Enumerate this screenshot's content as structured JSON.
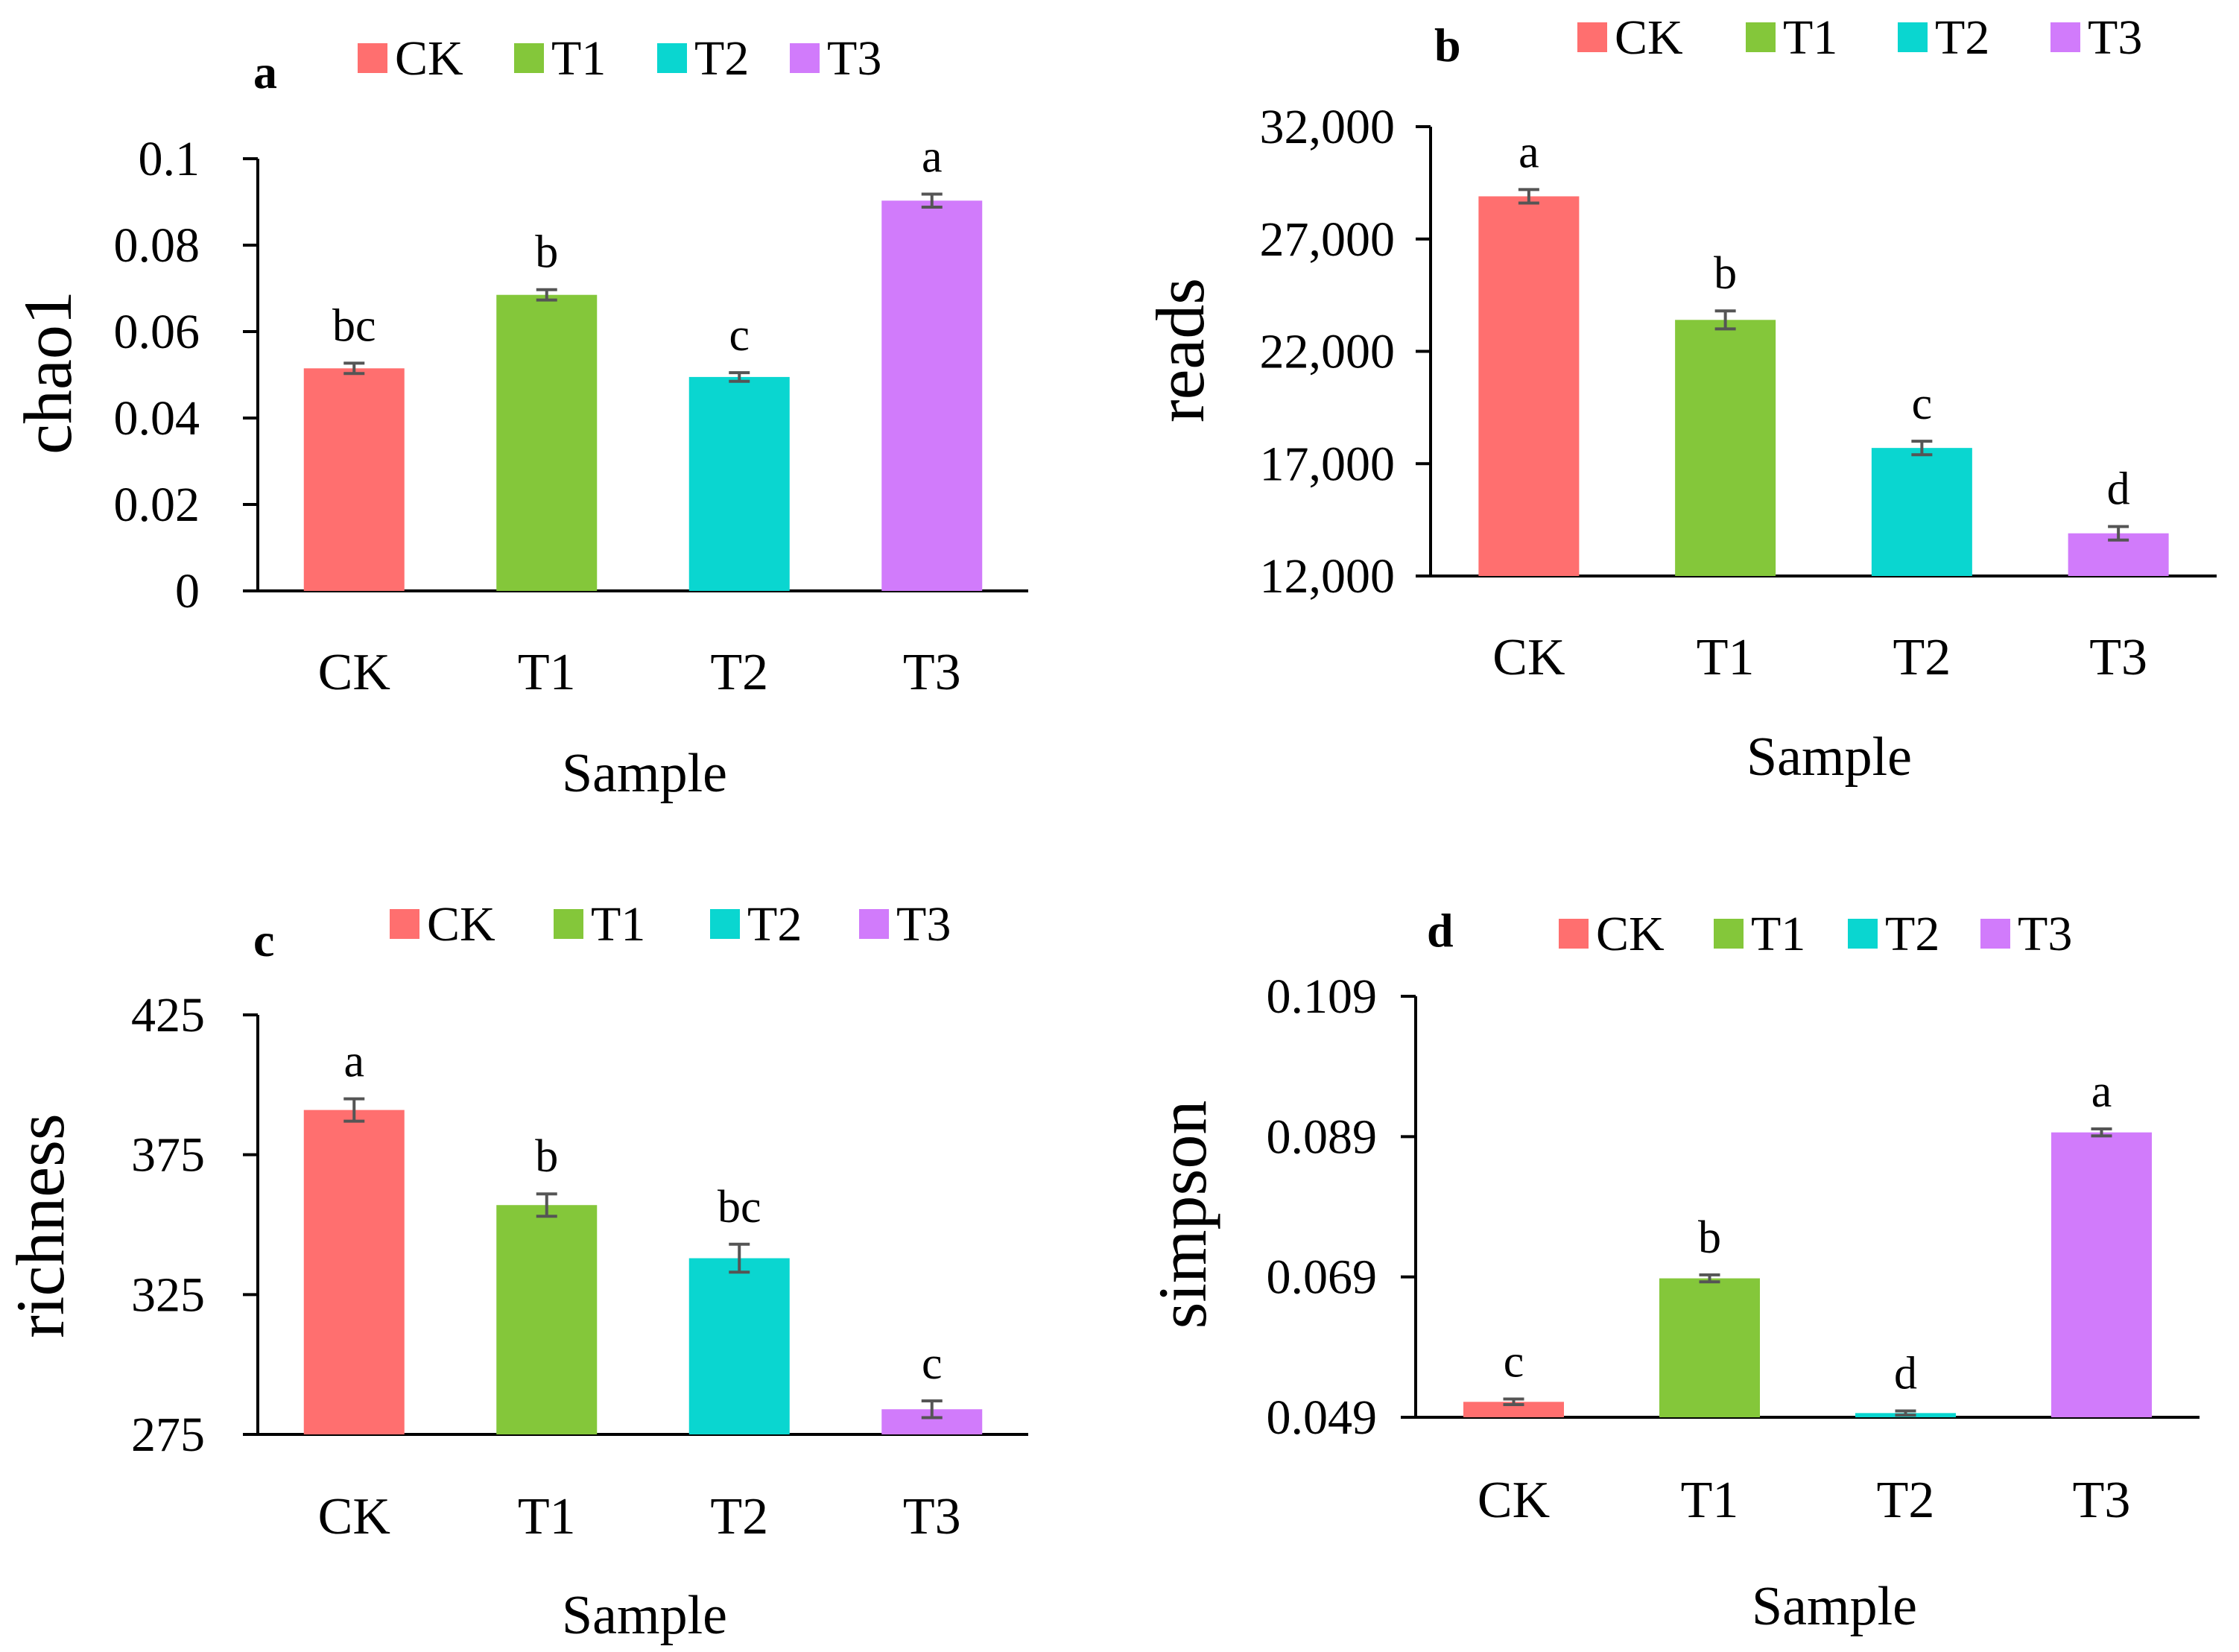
{
  "legend_labels": [
    "CK",
    "T1",
    "T2",
    "T3"
  ],
  "colors": {
    "CK": "#FF6F6F",
    "T1": "#84C73A",
    "T2": "#0AD6D0",
    "T3": "#D17BFB"
  },
  "chart_data": [
    {
      "panel": "a",
      "type": "bar",
      "title": "a",
      "xlabel": "Sample",
      "ylabel": "chao1",
      "categories": [
        "CK",
        "T1",
        "T2",
        "T3"
      ],
      "values": [
        0.0515,
        0.0685,
        0.0495,
        0.0903
      ],
      "errors": [
        0.0012,
        0.0012,
        0.001,
        0.0015
      ],
      "significance": [
        "bc",
        "b",
        "c",
        "a"
      ],
      "ylim": [
        0,
        0.1
      ],
      "yticks": [
        0,
        0.02,
        0.04,
        0.06,
        0.08,
        0.1
      ],
      "ytick_labels": [
        "0",
        "0.02",
        "0.04",
        "0.06",
        "0.08",
        "0.1"
      ],
      "legend": [
        "CK",
        "T1",
        "T2",
        "T3"
      ]
    },
    {
      "panel": "b",
      "type": "bar",
      "title": "b",
      "xlabel": "Sample",
      "ylabel": "reads",
      "categories": [
        "CK",
        "T1",
        "T2",
        "T3"
      ],
      "values": [
        28900,
        23400,
        17700,
        13900
      ],
      "errors": [
        300,
        400,
        300,
        300
      ],
      "significance": [
        "a",
        "b",
        "c",
        "d"
      ],
      "ylim": [
        12000,
        32000
      ],
      "yticks": [
        12000,
        17000,
        22000,
        27000,
        32000
      ],
      "ytick_labels": [
        "12,000",
        "17,000",
        "22,000",
        "27,000",
        "32,000"
      ],
      "legend": [
        "CK",
        "T1",
        "T2",
        "T3"
      ]
    },
    {
      "panel": "c",
      "type": "bar",
      "title": "c",
      "xlabel": "Sample",
      "ylabel": "richness",
      "categories": [
        "CK",
        "T1",
        "T2",
        "T3"
      ],
      "values": [
        391,
        357,
        338,
        284
      ],
      "errors": [
        4,
        4,
        5,
        3
      ],
      "significance": [
        "a",
        "b",
        "bc",
        "c"
      ],
      "ylim": [
        275,
        425
      ],
      "yticks": [
        275,
        325,
        375,
        425
      ],
      "ytick_labels": [
        "275",
        "325",
        "375",
        "425"
      ],
      "legend": [
        "CK",
        "T1",
        "T2",
        "T3"
      ]
    },
    {
      "panel": "d",
      "type": "bar",
      "title": "d",
      "xlabel": "Sample",
      "ylabel": "simpson",
      "categories": [
        "CK",
        "T1",
        "T2",
        "T3"
      ],
      "values": [
        0.0512,
        0.0688,
        0.0496,
        0.0896
      ],
      "errors": [
        0.0004,
        0.0005,
        0.0003,
        0.0005
      ],
      "significance": [
        "c",
        "b",
        "d",
        "a"
      ],
      "ylim": [
        0.049,
        0.109
      ],
      "yticks": [
        0.049,
        0.069,
        0.089,
        0.109
      ],
      "ytick_labels": [
        "0.049",
        "0.069",
        "0.089",
        "0.109"
      ],
      "legend": [
        "CK",
        "T1",
        "T2",
        "T3"
      ]
    }
  ]
}
